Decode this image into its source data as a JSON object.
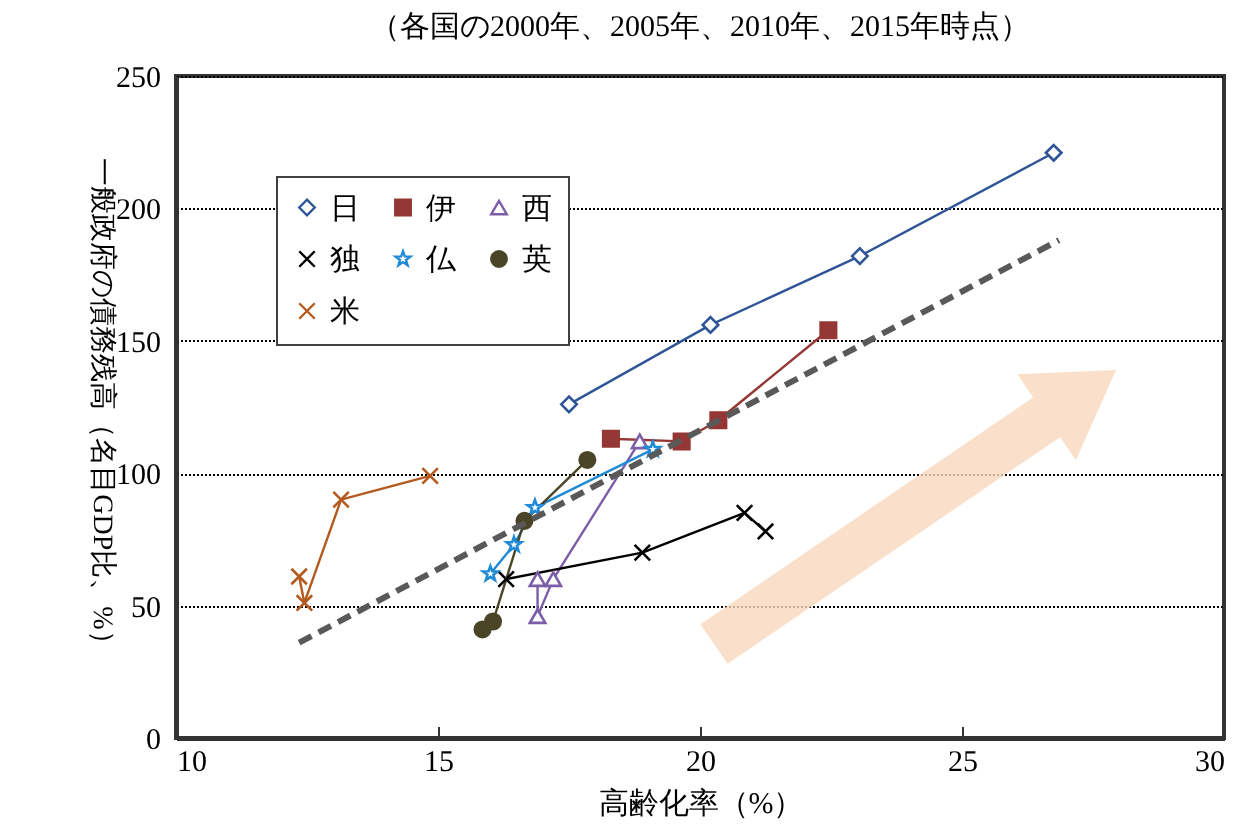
{
  "chart_data": {
    "type": "line",
    "title": "（各国の2000年、2005年、2010年、2015年時点）",
    "xlabel": "高齢化率（%）",
    "ylabel": "一般政府の債務残高（名目GDP比、%）",
    "xlim": [
      10,
      30
    ],
    "xticks": [
      10,
      15,
      20,
      25,
      30
    ],
    "ylim": [
      0,
      250
    ],
    "yticks": [
      0,
      50,
      100,
      150,
      200,
      250
    ],
    "grid": "y",
    "legend": "top left",
    "series": [
      {
        "name": "日",
        "color": "#2f5597",
        "marker": "diamond",
        "x": [
          17.5,
          20.2,
          23.05,
          26.75
        ],
        "values": [
          126,
          156,
          182,
          221
        ]
      },
      {
        "name": "伊",
        "color": "#953735",
        "marker": "square",
        "x": [
          18.3,
          19.65,
          20.35,
          22.45
        ],
        "values": [
          113,
          112,
          120,
          154
        ]
      },
      {
        "name": "西",
        "color": "#7b5ea7",
        "marker": "triangle",
        "x": [
          16.9,
          16.9,
          17.2,
          18.85
        ],
        "values": [
          60,
          46,
          60,
          112
        ]
      },
      {
        "name": "独",
        "color": "#000000",
        "marker": "cross",
        "x": [
          16.3,
          18.9,
          20.85,
          21.25
        ],
        "values": [
          60,
          70,
          85,
          78
        ]
      },
      {
        "name": "仏",
        "color": "#1f8ad6",
        "marker": "star",
        "x": [
          16.0,
          16.45,
          16.85,
          19.1
        ],
        "values": [
          62,
          73,
          87,
          109
        ]
      },
      {
        "name": "英",
        "color": "#4a4527",
        "marker": "circle",
        "x": [
          15.85,
          16.05,
          16.65,
          17.85
        ],
        "values": [
          41,
          44,
          82,
          105
        ]
      },
      {
        "name": "米",
        "color": "#b35a1f",
        "marker": "cross",
        "x": [
          12.35,
          12.45,
          13.15,
          14.85
        ],
        "values": [
          61,
          51,
          90,
          99
        ]
      },
      {
        "type": "line",
        "color": "#595959",
        "line_style": "dashed",
        "marker": "none",
        "x": [
          12.35,
          26.85
        ],
        "values": [
          36,
          188
        ]
      }
    ]
  }
}
